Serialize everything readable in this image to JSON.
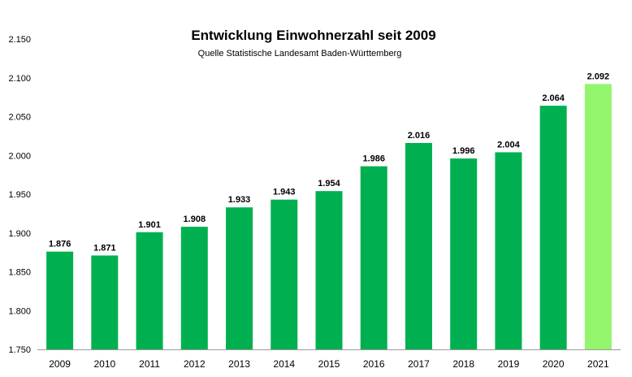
{
  "chart_data": {
    "type": "bar",
    "title": "Entwicklung Einwohnerzahl seit 2009",
    "subtitle": "Quelle Statistische Landesamt Baden-Württemberg",
    "xlabel": "",
    "ylabel": "",
    "categories": [
      "2009",
      "2010",
      "2011",
      "2012",
      "2013",
      "2014",
      "2015",
      "2016",
      "2017",
      "2018",
      "2019",
      "2020",
      "2021"
    ],
    "values": [
      1876,
      1871,
      1901,
      1908,
      1933,
      1943,
      1954,
      1986,
      2016,
      1996,
      2004,
      2064,
      2092
    ],
    "value_labels": [
      "1.876",
      "1.871",
      "1.901",
      "1.908",
      "1.933",
      "1.943",
      "1.954",
      "1.986",
      "2.016",
      "1.996",
      "2.004",
      "2.064",
      "2.092"
    ],
    "ylim": [
      1750,
      2150
    ],
    "yticks": [
      1750,
      1800,
      1850,
      1900,
      1950,
      2000,
      2050,
      2100,
      2150
    ],
    "ytick_labels": [
      "1.750",
      "1.800",
      "1.850",
      "1.900",
      "1.950",
      "2.000",
      "2.050",
      "2.100",
      "2.150"
    ],
    "grid": false,
    "colors": {
      "bar": "#00b050",
      "highlight": "#92f56c"
    },
    "highlight_index": 12
  }
}
